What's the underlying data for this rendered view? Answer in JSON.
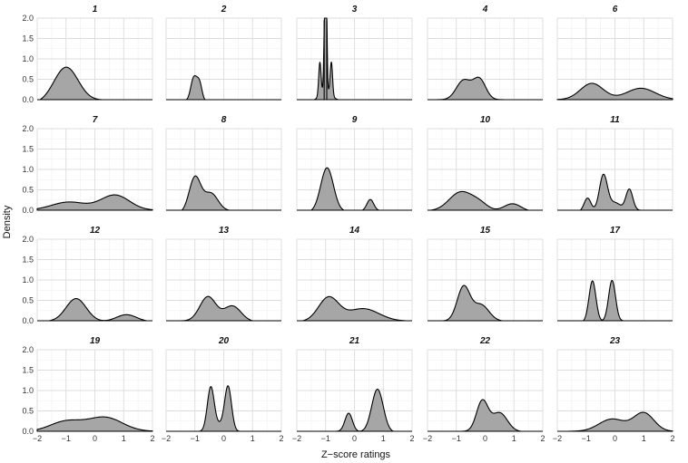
{
  "chart_data": {
    "type": "area",
    "kind": "faceted density plot",
    "xlabel": "Z−score ratings",
    "ylabel": "Density",
    "xlim": [
      -2,
      2
    ],
    "ylim": [
      0,
      2.0
    ],
    "x_ticks": [
      "−2",
      "−1",
      "0",
      "1",
      "2"
    ],
    "y_ticks": [
      "0.0",
      "0.5",
      "1.0",
      "1.5",
      "2.0"
    ],
    "grid": true,
    "fill_color": "#a6a6a6",
    "line_color": "#000000",
    "facets": [
      {
        "name": "1",
        "range": [
          -1.9,
          0.5
        ],
        "components": [
          [
            -1.0,
            0.42,
            0.85
          ]
        ]
      },
      {
        "name": "2",
        "range": [
          -1.3,
          -0.65
        ],
        "components": [
          [
            -0.95,
            0.11,
            0.42
          ],
          [
            -1.08,
            0.09,
            0.32
          ],
          [
            -0.82,
            0.08,
            0.26
          ]
        ]
      },
      {
        "name": "3",
        "range": [
          -1.4,
          -0.55
        ],
        "components": [
          [
            -1.2,
            0.04,
            0.8
          ],
          [
            -1.03,
            0.03,
            1.9
          ],
          [
            -0.97,
            0.025,
            1.95
          ],
          [
            -0.8,
            0.04,
            0.8
          ],
          [
            -1.0,
            0.18,
            0.25
          ]
        ],
        "vlines": [
          -1.05,
          -0.96
        ]
      },
      {
        "name": "4",
        "range": [
          -1.7,
          0.75
        ],
        "components": [
          [
            -0.75,
            0.25,
            0.47
          ],
          [
            -0.2,
            0.22,
            0.5
          ]
        ]
      },
      {
        "name": "6",
        "range": [
          -2.0,
          2.0
        ],
        "components": [
          [
            -0.8,
            0.4,
            0.4
          ],
          [
            0.9,
            0.5,
            0.28
          ]
        ]
      },
      {
        "name": "7",
        "range": [
          -2.0,
          2.0
        ],
        "components": [
          [
            -0.9,
            0.6,
            0.2
          ],
          [
            0.7,
            0.5,
            0.37
          ]
        ]
      },
      {
        "name": "8",
        "range": [
          -1.45,
          0.2
        ],
        "components": [
          [
            -1.0,
            0.2,
            0.85
          ],
          [
            -0.45,
            0.25,
            0.45
          ]
        ]
      },
      {
        "name": "9",
        "range": [
          -1.5,
          0.85
        ],
        "components": [
          [
            -0.95,
            0.22,
            1.08
          ],
          [
            0.55,
            0.12,
            0.28
          ]
        ]
      },
      {
        "name": "10",
        "range": [
          -1.9,
          1.5
        ],
        "components": [
          [
            -0.85,
            0.4,
            0.46
          ],
          [
            -0.2,
            0.3,
            0.17
          ],
          [
            0.95,
            0.3,
            0.19
          ]
        ]
      },
      {
        "name": "11",
        "range": [
          -1.2,
          0.9
        ],
        "components": [
          [
            -0.95,
            0.12,
            0.33
          ],
          [
            -0.4,
            0.14,
            0.88
          ],
          [
            0.0,
            0.2,
            0.2
          ],
          [
            0.5,
            0.12,
            0.52
          ]
        ]
      },
      {
        "name": "12",
        "range": [
          -1.6,
          1.8
        ],
        "components": [
          [
            -0.65,
            0.35,
            0.56
          ],
          [
            1.1,
            0.35,
            0.17
          ]
        ]
      },
      {
        "name": "13",
        "range": [
          -1.45,
          1.0
        ],
        "components": [
          [
            -0.55,
            0.28,
            0.6
          ],
          [
            0.3,
            0.3,
            0.38
          ]
        ]
      },
      {
        "name": "14",
        "range": [
          -1.8,
          1.8
        ],
        "components": [
          [
            -0.9,
            0.35,
            0.58
          ],
          [
            0.3,
            0.55,
            0.31
          ]
        ]
      },
      {
        "name": "15",
        "range": [
          -1.45,
          0.6
        ],
        "components": [
          [
            -0.75,
            0.22,
            0.83
          ],
          [
            -0.15,
            0.28,
            0.4
          ]
        ]
      },
      {
        "name": "17",
        "range": [
          -1.1,
          0.3
        ],
        "components": [
          [
            -0.78,
            0.12,
            1.0
          ],
          [
            -0.1,
            0.12,
            1.0
          ]
        ]
      },
      {
        "name": "19",
        "range": [
          -2.0,
          2.0
        ],
        "components": [
          [
            -1.0,
            0.55,
            0.24
          ],
          [
            0.35,
            0.6,
            0.34
          ]
        ]
      },
      {
        "name": "20",
        "range": [
          -0.85,
          0.55
        ],
        "components": [
          [
            -0.45,
            0.12,
            1.08
          ],
          [
            0.15,
            0.12,
            1.1
          ],
          [
            -0.15,
            0.15,
            0.15
          ]
        ]
      },
      {
        "name": "21",
        "range": [
          -0.65,
          1.35
        ],
        "components": [
          [
            -0.2,
            0.13,
            0.45
          ],
          [
            0.8,
            0.2,
            1.05
          ]
        ]
      },
      {
        "name": "22",
        "range": [
          -0.85,
          1.25
        ],
        "components": [
          [
            -0.1,
            0.2,
            0.74
          ],
          [
            0.5,
            0.27,
            0.46
          ]
        ]
      },
      {
        "name": "23",
        "range": [
          -1.6,
          2.0
        ],
        "components": [
          [
            -0.1,
            0.45,
            0.3
          ],
          [
            1.0,
            0.35,
            0.45
          ]
        ]
      }
    ]
  }
}
